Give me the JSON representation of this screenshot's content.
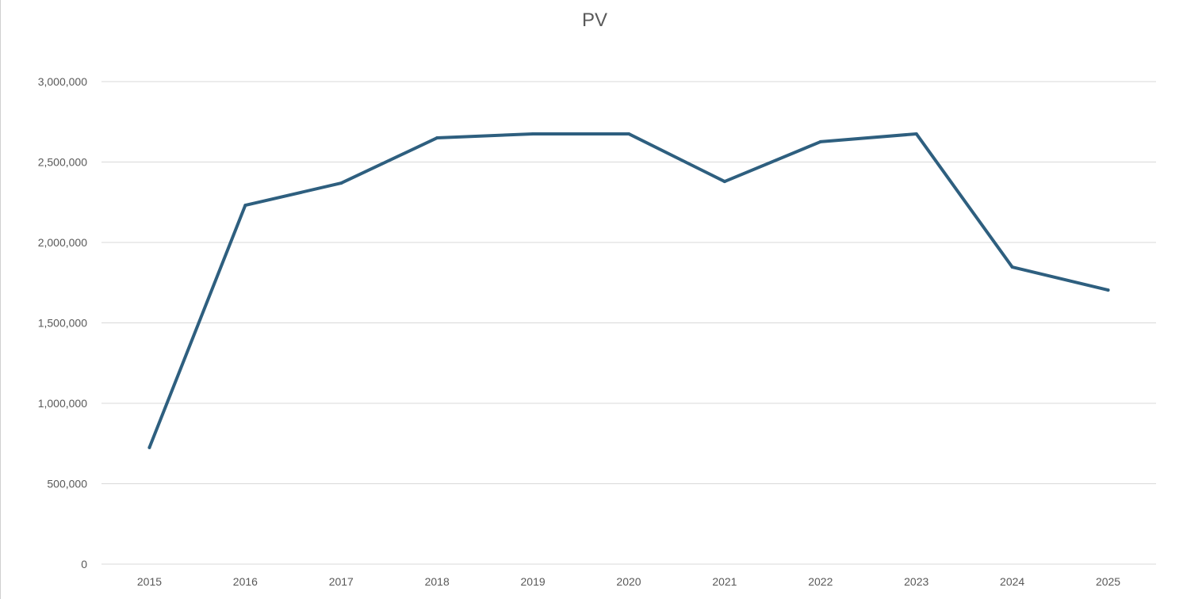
{
  "chart_data": {
    "type": "line",
    "title": "PV",
    "xlabel": "",
    "ylabel": "",
    "categories": [
      "2015",
      "2016",
      "2017",
      "2018",
      "2019",
      "2020",
      "2021",
      "2022",
      "2023",
      "2024",
      "2025"
    ],
    "series": [
      {
        "name": "PV",
        "values": [
          725000,
          2231000,
          2369000,
          2650000,
          2675000,
          2675000,
          2379000,
          2626000,
          2675000,
          1847000,
          1704000
        ],
        "color": "#2e5f7f"
      }
    ],
    "ylim": [
      0,
      3000000
    ],
    "yticks": [
      0,
      500000,
      1000000,
      1500000,
      2000000,
      2500000,
      3000000
    ],
    "ytick_labels": [
      "0",
      "500,000",
      "1,000,000",
      "1,500,000",
      "2,000,000",
      "2,500,000",
      "3,000,000"
    ],
    "grid": true,
    "legend": "none"
  }
}
